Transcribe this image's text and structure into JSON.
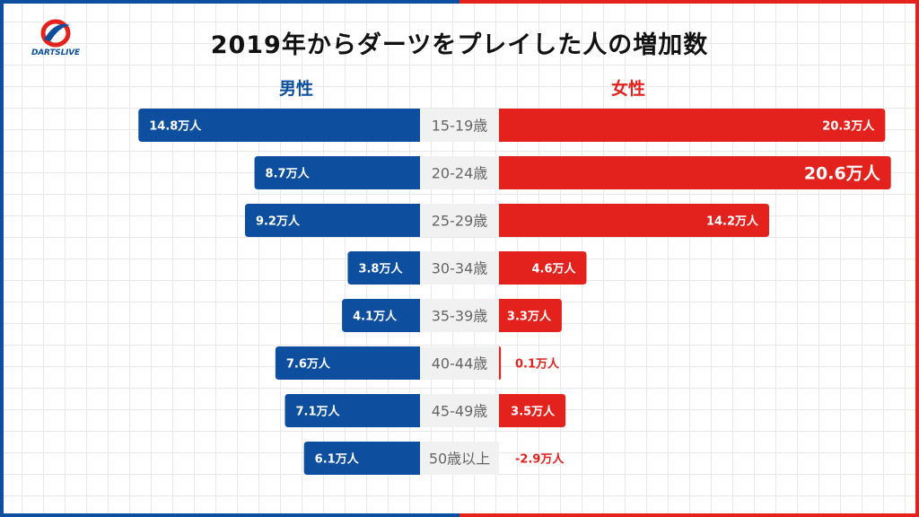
{
  "title": "2019年からダーツをプレイした人の増加数",
  "logo": {
    "text": "DARTSLIVE"
  },
  "colors": {
    "male": "#0d4f9e",
    "female": "#e3221d",
    "center_bg": "#f1f1f1",
    "center_text": "#666666",
    "logo_red": "#e3221d",
    "logo_blue": "#0d4f9e"
  },
  "chart_data": {
    "type": "bar",
    "title": "2019年からダーツをプレイした人の増加数",
    "unit": "万人",
    "categories": [
      "15-19歳",
      "20-24歳",
      "25-29歳",
      "30-34歳",
      "35-39歳",
      "40-44歳",
      "45-49歳",
      "50歳以上"
    ],
    "series": [
      {
        "name": "男性",
        "values": [
          14.8,
          8.7,
          9.2,
          3.8,
          4.1,
          7.6,
          7.1,
          6.1
        ],
        "labels": [
          "14.8万人",
          "8.7万人",
          "9.2万人",
          "3.8万人",
          "4.1万人",
          "7.6万人",
          "7.1万人",
          "6.1万人"
        ]
      },
      {
        "name": "女性",
        "values": [
          20.3,
          20.6,
          14.2,
          4.6,
          3.3,
          0.1,
          3.5,
          -2.9
        ],
        "labels": [
          "20.3万人",
          "20.6万人",
          "14.2万人",
          "4.6万人",
          "3.3万人",
          "0.1万人",
          "3.5万人",
          "-2.9万人"
        ]
      }
    ],
    "highlight_index": {
      "series": 1,
      "category": 1
    },
    "grid": true,
    "legend": "none"
  }
}
